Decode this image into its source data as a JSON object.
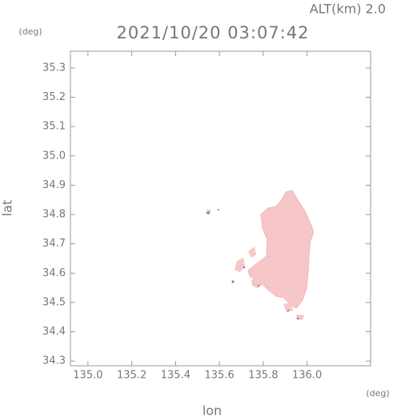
{
  "chart_data": {
    "type": "map",
    "title": "2021/10/20 03:07:42",
    "annotation": "ALT(km) 2.0",
    "x_label": "lon",
    "y_label": "lat",
    "x_unit": "(deg)",
    "y_unit": "(deg)",
    "xlim": [
      134.92,
      136.29
    ],
    "ylim": [
      34.284,
      35.357
    ],
    "xticks": [
      {
        "value": 135,
        "label": "135.0"
      },
      135.2,
      135.4,
      135.6,
      135.8,
      {
        "value": 136,
        "label": "136.0"
      }
    ],
    "yticks": [
      34.3,
      34.4,
      34.5,
      34.6,
      34.7,
      34.8,
      34.9,
      {
        "value": 35,
        "label": "35.0"
      },
      35.1,
      35.2,
      35.3
    ]
  }
}
